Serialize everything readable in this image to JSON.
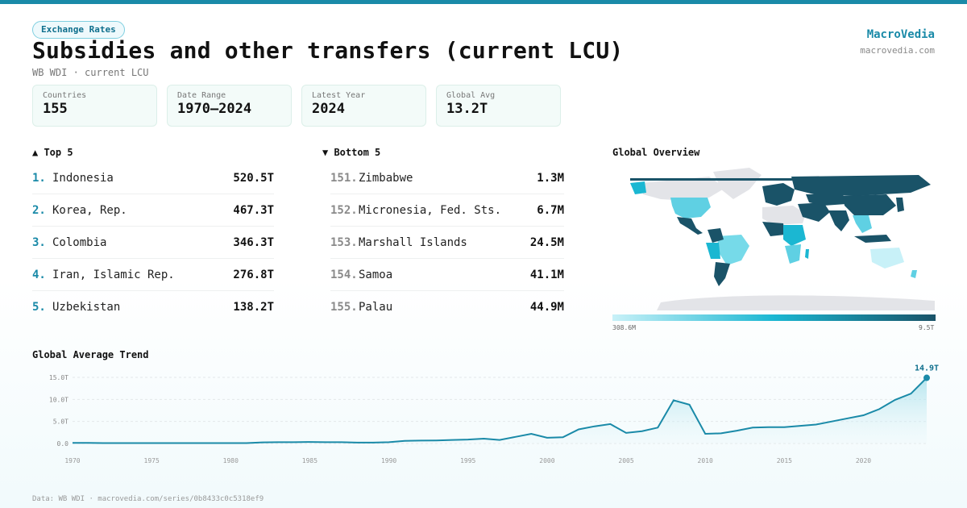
{
  "header": {
    "tag": "Exchange Rates",
    "title": "Subsidies and other transfers (current LCU)",
    "subtitle": "WB WDI · current LCU",
    "brand": "MacroVedia",
    "brand_url": "macrovedia.com"
  },
  "stats": [
    {
      "label": "Countries",
      "value": "155"
    },
    {
      "label": "Date Range",
      "value": "1970–2024"
    },
    {
      "label": "Latest Year",
      "value": "2024"
    },
    {
      "label": "Global Avg",
      "value": "13.2T"
    }
  ],
  "top5": {
    "title": "▲ Top 5",
    "rows": [
      {
        "rank": "1.",
        "name": "Indonesia",
        "value": "520.5T"
      },
      {
        "rank": "2.",
        "name": "Korea, Rep.",
        "value": "467.3T"
      },
      {
        "rank": "3.",
        "name": "Colombia",
        "value": "346.3T"
      },
      {
        "rank": "4.",
        "name": "Iran, Islamic Rep.",
        "value": "276.8T"
      },
      {
        "rank": "5.",
        "name": "Uzbekistan",
        "value": "138.2T"
      }
    ]
  },
  "bottom5": {
    "title": "▼ Bottom 5",
    "rows": [
      {
        "rank": "151.",
        "name": "Zimbabwe",
        "value": "1.3M"
      },
      {
        "rank": "152.",
        "name": "Micronesia, Fed. Sts.",
        "value": "6.7M"
      },
      {
        "rank": "153.",
        "name": "Marshall Islands",
        "value": "24.5M"
      },
      {
        "rank": "154.",
        "name": "Samoa",
        "value": "41.1M"
      },
      {
        "rank": "155.",
        "name": "Palau",
        "value": "44.9M"
      }
    ]
  },
  "map": {
    "title": "Global Overview",
    "legend_min": "308.6M",
    "legend_max": "9.5T",
    "colors": {
      "no_data": "#e3e4e8",
      "low": "#c8f1f8",
      "mid": "#1bb7d2",
      "high": "#1a5368"
    }
  },
  "trend": {
    "title": "Global Average Trend",
    "last_label": "14.9T"
  },
  "footer": "Data: WB WDI · macrovedia.com/series/0b8433c0c5318ef9",
  "chart_data": {
    "type": "area",
    "title": "Global Average Trend",
    "xlabel": "",
    "ylabel": "",
    "x": [
      1970,
      1971,
      1972,
      1973,
      1974,
      1975,
      1976,
      1977,
      1978,
      1979,
      1980,
      1981,
      1982,
      1983,
      1984,
      1985,
      1986,
      1987,
      1988,
      1989,
      1990,
      1991,
      1992,
      1993,
      1994,
      1995,
      1996,
      1997,
      1998,
      1999,
      2000,
      2001,
      2002,
      2003,
      2004,
      2005,
      2006,
      2007,
      2008,
      2009,
      2010,
      2011,
      2012,
      2013,
      2014,
      2015,
      2016,
      2017,
      2018,
      2019,
      2020,
      2021,
      2022,
      2023,
      2024
    ],
    "series": [
      {
        "values": [
          0.15,
          0.12,
          0.1,
          0.1,
          0.1,
          0.1,
          0.1,
          0.1,
          0.1,
          0.1,
          0.1,
          0.1,
          0.25,
          0.3,
          0.3,
          0.35,
          0.3,
          0.3,
          0.2,
          0.2,
          0.3,
          0.6,
          0.65,
          0.7,
          0.8,
          0.9,
          1.1,
          0.8,
          1.5,
          2.2,
          1.3,
          1.4,
          3.2,
          3.9,
          4.4,
          2.4,
          2.8,
          3.6,
          9.8,
          8.8,
          2.2,
          2.3,
          2.9,
          3.6,
          3.7,
          3.7,
          4.0,
          4.3,
          5.0,
          5.7,
          6.4,
          7.8,
          9.9,
          11.3,
          14.9
        ]
      }
    ],
    "x_ticks": [
      "1970",
      "1975",
      "1980",
      "1985",
      "1990",
      "1995",
      "2000",
      "2005",
      "2010",
      "2015",
      "2020"
    ],
    "y_ticks": [
      "0.0",
      "5.0T",
      "10.0T",
      "15.0T"
    ],
    "ylim": [
      0,
      15
    ],
    "grid": true,
    "colors": {
      "line": "#1a8aa8",
      "fill": "#bfe9f2"
    }
  }
}
